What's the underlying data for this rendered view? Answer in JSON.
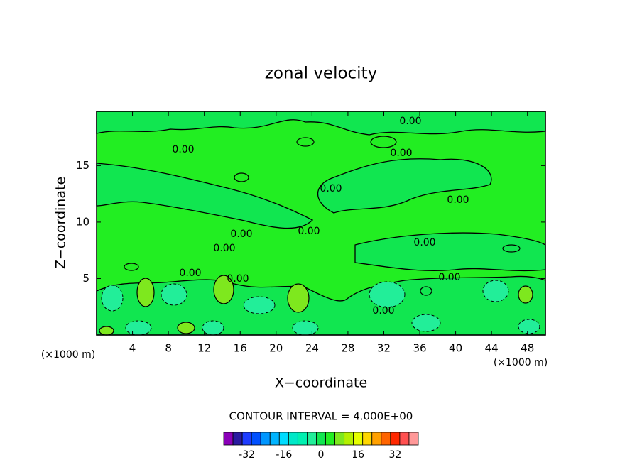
{
  "chart_data": {
    "type": "contour",
    "title": "zonal velocity",
    "xlabel": "X−coordinate",
    "ylabel": "Z−coordinate",
    "x_unit_left": "(×1000 m)",
    "x_unit_right": "(×1000 m)",
    "xlim": [
      0,
      50
    ],
    "ylim": [
      0,
      19.8
    ],
    "xticks": [
      4,
      8,
      12,
      16,
      20,
      24,
      28,
      32,
      36,
      40,
      44,
      48
    ],
    "yticks": [
      5,
      10,
      15
    ],
    "contour_labels": [
      "0.00",
      "0.00",
      "0.00",
      "0.00",
      "0.00",
      "0.00",
      "0.00",
      "0.00",
      "0.00",
      "0.00",
      "0.00",
      "0.00",
      "0.00"
    ],
    "contour_interval_text": "CONTOUR INTERVAL = 4.000E+00",
    "colorbar": {
      "lim": [
        -42,
        42
      ],
      "ticks": [
        -32,
        -16,
        0,
        16,
        32
      ],
      "colors": [
        "#8a00b8",
        "#2a1aa0",
        "#1e3cff",
        "#0050ff",
        "#0096ff",
        "#00b4ff",
        "#00dcff",
        "#00e8c8",
        "#00f0b0",
        "#22ee99",
        "#11e650",
        "#22ee22",
        "#7ee81e",
        "#b4f000",
        "#e6ff00",
        "#ffd700",
        "#ffa000",
        "#ff6400",
        "#ff2800",
        "#ff5050",
        "#ff9898"
      ]
    }
  }
}
